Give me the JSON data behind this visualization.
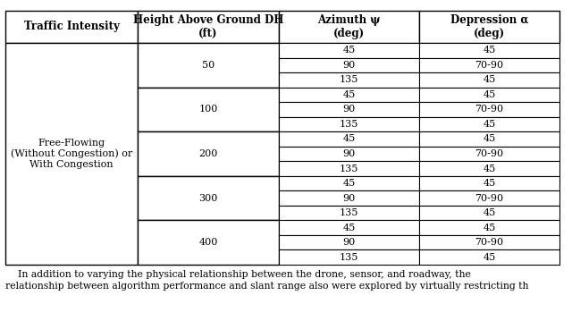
{
  "col_headers": [
    "Traffic Intensity",
    "Height Above Ground DH\n(ft)",
    "Azimuth ψ\n(deg)",
    "Depression α\n(deg)"
  ],
  "traffic_intensity_label": "Free-Flowing\n(Without Congestion) or\nWith Congestion",
  "heights": [
    "50",
    "100",
    "200",
    "300",
    "400"
  ],
  "azimuths": [
    "45",
    "90",
    "135"
  ],
  "depressions": [
    "45",
    "70-90",
    "45"
  ],
  "footer_line1": "    In addition to varying the physical relationship between the drone, sensor, and roadway, the",
  "footer_line2": "relationship between algorithm performance and slant range also were explored by virtually restricting th",
  "bg_color": "#ffffff",
  "line_color": "#000000",
  "text_color": "#000000",
  "font_size": 8.0,
  "header_font_size": 8.5,
  "footer_font_size": 7.8
}
